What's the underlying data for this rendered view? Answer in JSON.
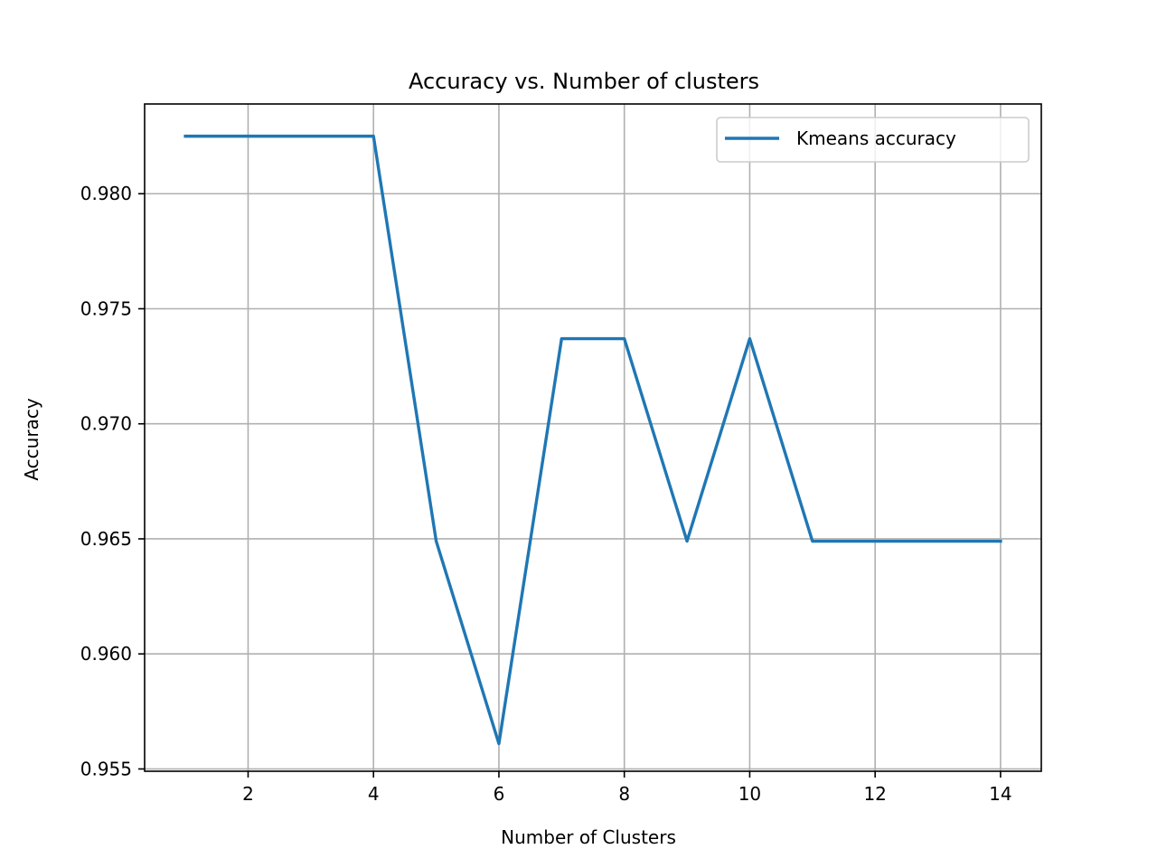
{
  "chart_data": {
    "type": "line",
    "title": "Accuracy  vs. Number of clusters",
    "xlabel": "Number of Clusters",
    "ylabel": "Accuracy",
    "xlim": [
      0.35,
      14.65
    ],
    "ylim": [
      0.9549,
      0.9839
    ],
    "xticks": [
      2,
      4,
      6,
      8,
      10,
      12,
      14
    ],
    "yticks": [
      0.955,
      0.96,
      0.965,
      0.97,
      0.975,
      0.98
    ],
    "xtick_labels": [
      "2",
      "4",
      "6",
      "8",
      "10",
      "12",
      "14"
    ],
    "ytick_labels": [
      "0.955",
      "0.960",
      "0.965",
      "0.970",
      "0.975",
      "0.980"
    ],
    "grid": true,
    "legend_position": "top-right",
    "series": [
      {
        "name": "Kmeans accuracy",
        "color": "#1f77b4",
        "x": [
          1,
          2,
          3,
          4,
          5,
          6,
          7,
          8,
          9,
          10,
          11,
          12,
          13,
          14
        ],
        "y": [
          0.9825,
          0.9825,
          0.9825,
          0.9825,
          0.9649,
          0.9561,
          0.9737,
          0.9737,
          0.9649,
          0.9737,
          0.9649,
          0.9649,
          0.9649,
          0.9649
        ]
      }
    ]
  }
}
